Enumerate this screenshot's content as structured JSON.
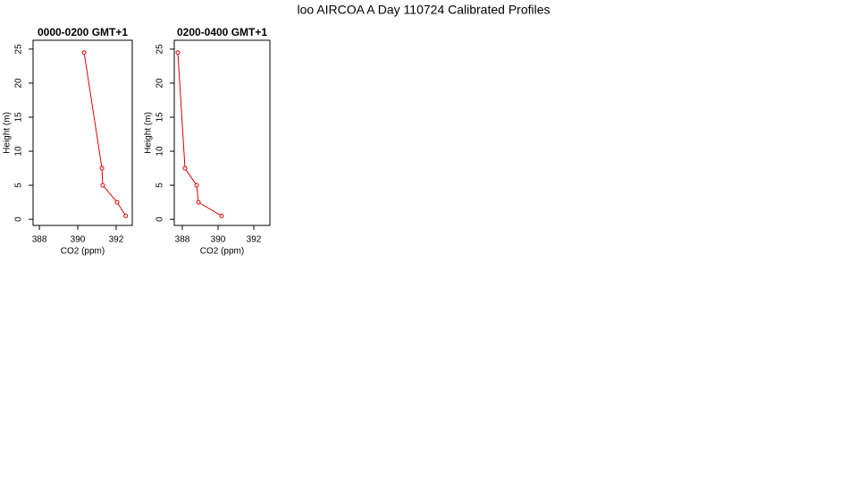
{
  "title": "loo AIRCOA A  Day 110724  Calibrated Profiles",
  "chart_data": [
    {
      "type": "line",
      "title": "0000-0200 GMT+1",
      "xlabel": "CO2 (ppm)",
      "ylabel": "Height (m)",
      "color": "#e00000",
      "x": [
        390.33,
        391.26,
        391.3,
        392.05,
        392.5
      ],
      "values": [
        24.5,
        7.5,
        5,
        2.5,
        0.5
      ],
      "xlim": [
        387.67,
        392.84
      ],
      "xticks": [
        388,
        390,
        392
      ],
      "ylim": [
        -0.9,
        26.3
      ],
      "yticks": [
        0,
        5,
        10,
        15,
        20,
        25
      ]
    },
    {
      "type": "line",
      "title": "0200-0400 GMT+1",
      "xlabel": "CO2 (ppm)",
      "ylabel": "Height (m)",
      "color": "#e00000",
      "x": [
        387.75,
        388.15,
        388.8,
        388.9,
        390.2
      ],
      "values": [
        24.5,
        7.5,
        5,
        2.5,
        0.5
      ],
      "xlim": [
        387.55,
        392.9
      ],
      "xticks": [
        388,
        390,
        392
      ],
      "ylim": [
        -0.9,
        26.3
      ],
      "yticks": [
        0,
        5,
        10,
        15,
        20,
        25
      ]
    }
  ]
}
